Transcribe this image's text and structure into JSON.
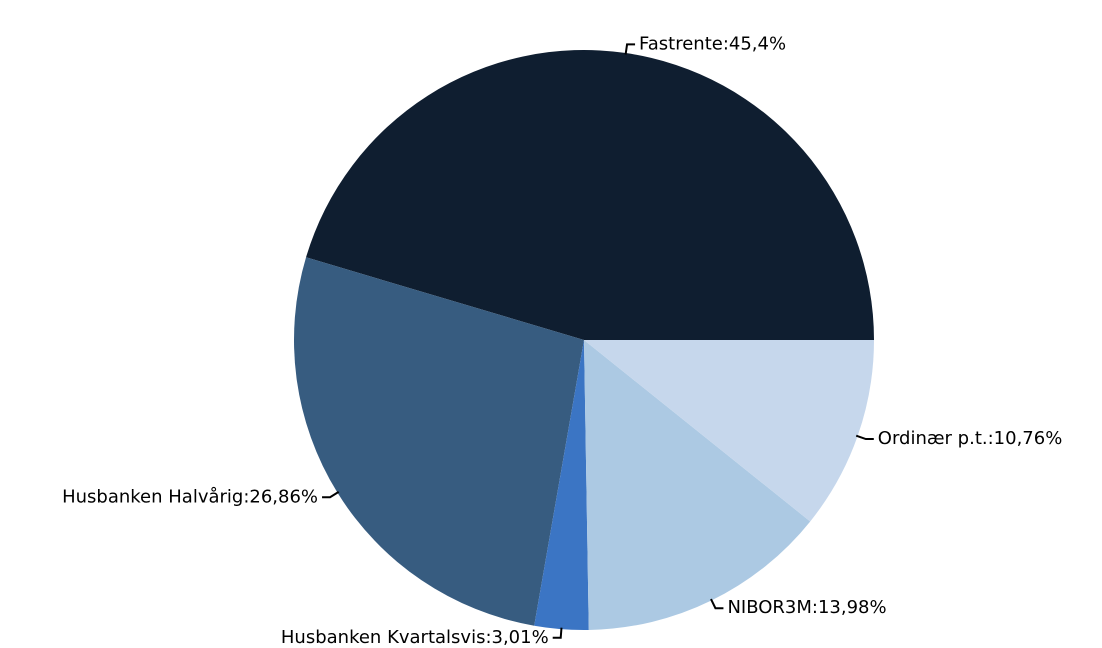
{
  "chart_data": {
    "type": "pie",
    "labels": [
      "Fastrente:45,4%",
      "Husbanken Halvårig:26,86%",
      "Husbanken Kvartalsvis:3,01%",
      "NIBOR3M:13,98%",
      "Ordinær p.t.:10,76%"
    ],
    "values": [
      45.4,
      26.86,
      3.01,
      13.98,
      10.76
    ],
    "colors": [
      "#0f1e30",
      "#375c80",
      "#3b75c4",
      "#acc9e3",
      "#c6d7ec"
    ]
  }
}
